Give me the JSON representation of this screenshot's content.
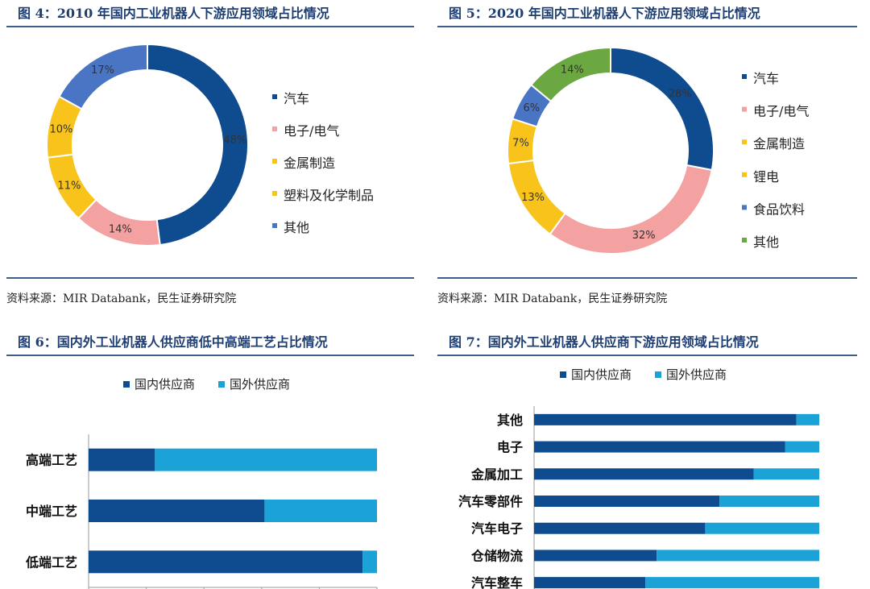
{
  "panels": [
    {
      "title": "图 4：2010 年国内工业机器人下游应用领域占比情况",
      "source": "资料来源：MIR Databank，民生证券研究院"
    },
    {
      "title": "图 5：2020 年国内工业机器人下游应用领域占比情况",
      "source": "资料来源：MIR Databank，民生证券研究院"
    },
    {
      "title": "图 6：国内外工业机器人供应商低中高端工艺占比情况"
    },
    {
      "title": "图 7：国内外工业机器人供应商下游应用领域占比情况"
    }
  ],
  "colors": {
    "dark_blue": "#0e4c8f",
    "pink": "#f4a1a2",
    "yellow": "#f8c41c",
    "slate_blue": "#4a74c4",
    "green": "#6ca842",
    "light_blue": "#1ba3d8"
  },
  "chart_data": [
    {
      "type": "pie",
      "donut": true,
      "title": "图 4：2010 年国内工业机器人下游应用领域占比情况",
      "labels": [
        "汽车",
        "电子/电气",
        "金属制造",
        "塑料及化学制品",
        "其他"
      ],
      "values": [
        48,
        14,
        11,
        10,
        17
      ],
      "value_labels": [
        "48%",
        "14%",
        "11%",
        "10%",
        "17%"
      ],
      "colors": [
        "#0e4c8f",
        "#f4a1a2",
        "#f8c41c",
        "#f8c41c",
        "#4a74c4"
      ],
      "legend_position": "right"
    },
    {
      "type": "pie",
      "donut": true,
      "title": "图 5：2020 年国内工业机器人下游应用领域占比情况",
      "labels": [
        "汽车",
        "电子/电气",
        "金属制造",
        "锂电",
        "食品饮料",
        "其他"
      ],
      "values": [
        28,
        32,
        13,
        7,
        6,
        14
      ],
      "value_labels": [
        "28%",
        "32%",
        "13%",
        "7%",
        "6%",
        "14%"
      ],
      "colors": [
        "#0e4c8f",
        "#f4a1a2",
        "#f8c41c",
        "#f8c41c",
        "#4a74c4",
        "#6ca842"
      ],
      "legend_position": "right"
    },
    {
      "type": "bar",
      "orientation": "horizontal",
      "stacked": true,
      "title": "图 6：国内外工业机器人供应商低中高端工艺占比情况",
      "categories": [
        "高端工艺",
        "中端工艺",
        "低端工艺"
      ],
      "series": [
        {
          "name": "国内供应商",
          "values": [
            23,
            61,
            95
          ],
          "color": "#0e4c8f"
        },
        {
          "name": "国外供应商",
          "values": [
            77,
            39,
            5
          ],
          "color": "#1ba3d8"
        }
      ],
      "xlim": [
        0,
        100
      ],
      "xticks": [
        "0%",
        "20%",
        "40%",
        "60%",
        "80%",
        "100%"
      ],
      "legend_position": "top"
    },
    {
      "type": "bar",
      "orientation": "horizontal",
      "stacked": true,
      "title": "图 7：国内外工业机器人供应商下游应用领域占比情况",
      "categories": [
        "其他",
        "电子",
        "金属加工",
        "汽车零部件",
        "汽车电子",
        "仓储物流",
        "汽车整车"
      ],
      "series": [
        {
          "name": "国内供应商",
          "values": [
            92,
            88,
            77,
            65,
            60,
            43,
            39
          ],
          "color": "#0e4c8f"
        },
        {
          "name": "国外供应商",
          "values": [
            8,
            12,
            23,
            35,
            40,
            57,
            61
          ],
          "color": "#1ba3d8"
        }
      ],
      "xlim": [
        0,
        100
      ],
      "legend_position": "top"
    }
  ]
}
